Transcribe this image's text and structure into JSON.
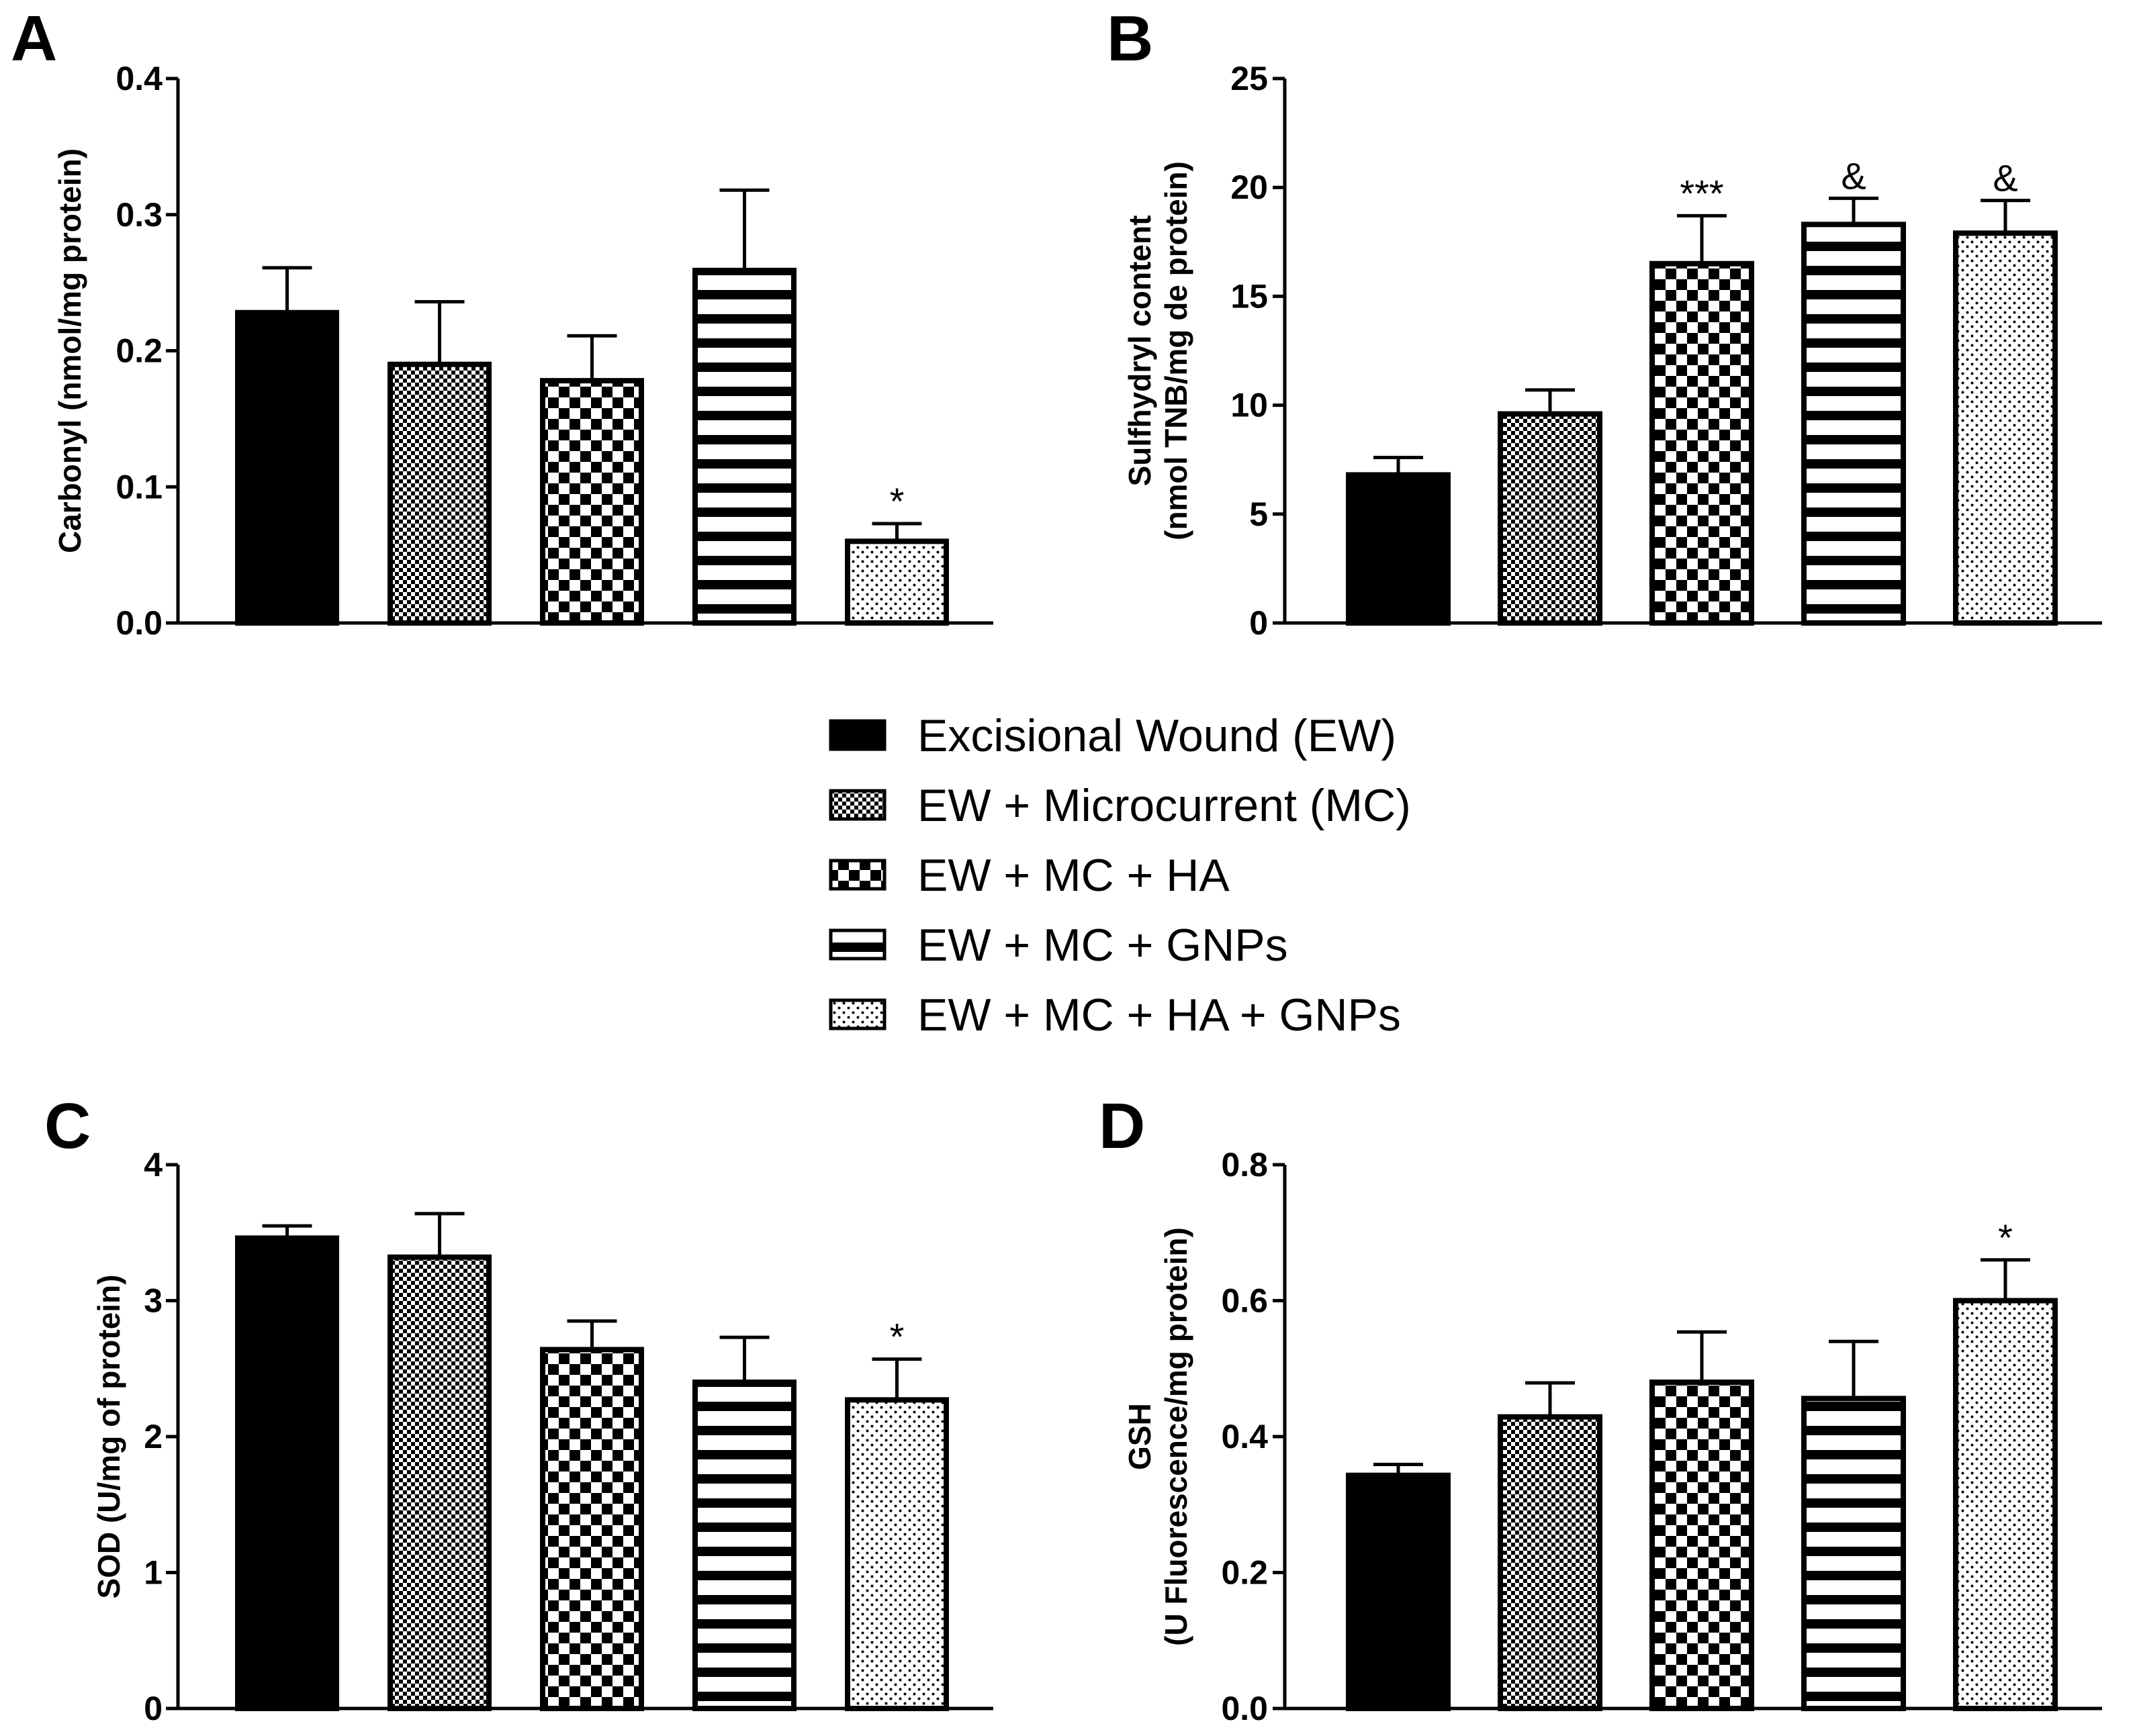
{
  "legend": {
    "entries": [
      {
        "label": "Excisional Wound (EW)",
        "pattern": "solid"
      },
      {
        "label": "EW + Microcurrent (MC)",
        "pattern": "fine-check"
      },
      {
        "label": "EW + MC + HA",
        "pattern": "checker"
      },
      {
        "label": "EW + MC + GNPs",
        "pattern": "hstripes"
      },
      {
        "label": "EW + MC + HA + GNPs",
        "pattern": "dots"
      }
    ]
  },
  "chart_data": [
    {
      "panel": "A",
      "type": "bar",
      "title": "",
      "ylabel_lines": [
        "Carbonyl (nmol/mg protein)"
      ],
      "ylim": [
        0,
        0.4
      ],
      "ticks": [
        "0.0",
        "0.1",
        "0.2",
        "0.3",
        "0.4"
      ],
      "categories": [
        "Excisional Wound (EW)",
        "EW + Microcurrent (MC)",
        "EW + MC + HA",
        "EW + MC + GNPs",
        "EW + MC + HA + GNPs"
      ],
      "values": [
        0.228,
        0.19,
        0.178,
        0.259,
        0.06
      ],
      "errors": [
        0.033,
        0.046,
        0.033,
        0.059,
        0.013
      ],
      "annotations": [
        "",
        "",
        "",
        "",
        "*"
      ]
    },
    {
      "panel": "B",
      "type": "bar",
      "title": "",
      "ylabel_lines": [
        "Sulfhydryl content",
        "(nmol TNB/mg de protein)"
      ],
      "ylim": [
        0,
        25
      ],
      "ticks": [
        "0",
        "5",
        "10",
        "15",
        "20",
        "25"
      ],
      "categories": [
        "Excisional Wound (EW)",
        "EW + Microcurrent (MC)",
        "EW + MC + HA",
        "EW + MC + GNPs",
        "EW + MC + HA + GNPs"
      ],
      "values": [
        6.8,
        9.6,
        16.5,
        18.3,
        17.9
      ],
      "errors": [
        0.8,
        1.1,
        2.2,
        1.2,
        1.5
      ],
      "annotations": [
        "",
        "",
        "***",
        "&",
        "&"
      ]
    },
    {
      "panel": "C",
      "type": "bar",
      "title": "",
      "ylabel_lines": [
        "SOD (U/mg of protein)"
      ],
      "ylim": [
        0,
        4
      ],
      "ticks": [
        "0",
        "1",
        "2",
        "3",
        "4"
      ],
      "categories": [
        "Excisional Wound (EW)",
        "EW + Microcurrent (MC)",
        "EW + MC + HA",
        "EW + MC + GNPs",
        "EW + MC + HA + GNPs"
      ],
      "values": [
        3.46,
        3.32,
        2.64,
        2.4,
        2.27
      ],
      "errors": [
        0.09,
        0.32,
        0.21,
        0.33,
        0.3
      ],
      "annotations": [
        "",
        "",
        "",
        "",
        "*"
      ]
    },
    {
      "panel": "D",
      "type": "bar",
      "title": "",
      "ylabel_lines": [
        "GSH",
        "(U Fluorescence/mg protein)"
      ],
      "ylim": [
        0,
        0.8
      ],
      "ticks": [
        "0.0",
        "0.2",
        "0.4",
        "0.6",
        "0.8"
      ],
      "categories": [
        "Excisional Wound (EW)",
        "EW + Microcurrent (MC)",
        "EW + MC + HA",
        "EW + MC + GNPs",
        "EW + MC + HA + GNPs"
      ],
      "values": [
        0.343,
        0.429,
        0.48,
        0.456,
        0.6
      ],
      "errors": [
        0.016,
        0.05,
        0.074,
        0.084,
        0.06
      ],
      "annotations": [
        "",
        "",
        "",
        "",
        "*"
      ]
    }
  ]
}
